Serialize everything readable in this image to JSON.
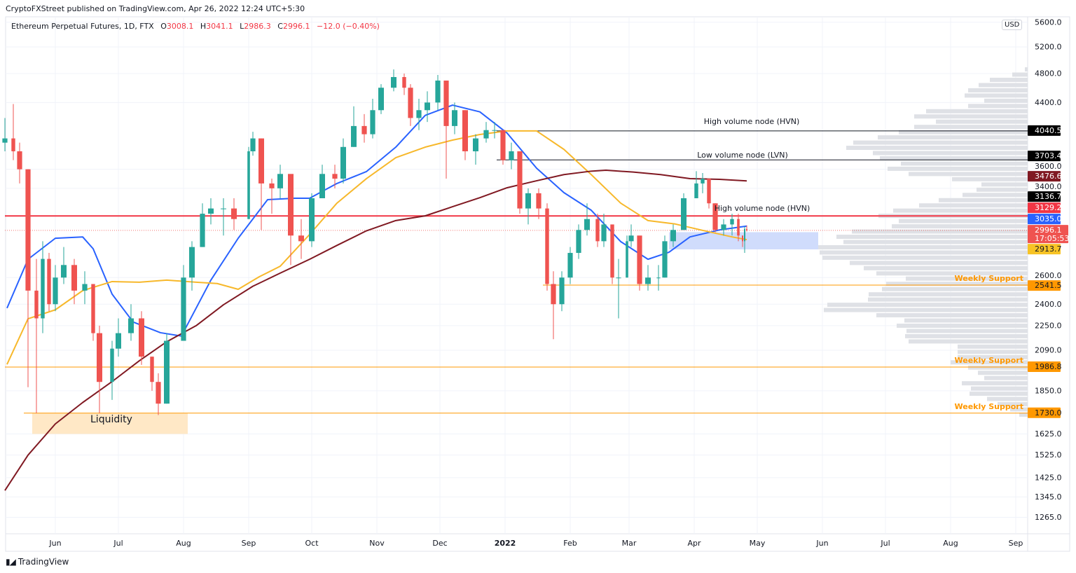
{
  "header": {
    "published": "CryptoFXStreet published on TradingView.com, Apr 26, 2022 12:24 UTC+5:30",
    "symbol": "Ethereum Perpetual Futures, 1D, FTX",
    "o_label": "O",
    "o": "3008.1",
    "h_label": "H",
    "h": "3041.1",
    "l_label": "L",
    "l": "2986.3",
    "c_label": "C",
    "c": "2996.1",
    "change": "−12.0 (−0.40%)",
    "currency": "USD"
  },
  "footer": {
    "logo_mark": "17",
    "brand": "TradingView"
  },
  "chart_data": {
    "type": "candlestick",
    "title": "Ethereum Perpetual Futures, 1D, FTX",
    "y_scale": "log",
    "ylim": [
      1200,
      5600
    ],
    "xlim": [
      "2021-05-08",
      "2022-09-08"
    ],
    "grid": true,
    "colors": {
      "up": "#26a69a",
      "down": "#ef5350",
      "ma_blue": "#2962ff",
      "ma_yellow": "#f7b82b",
      "ma_darkred": "#801922",
      "hvn_red": "#f23645",
      "support": "#ff9800",
      "node_line": "#131722",
      "zone_blue": "#d0dcfc",
      "liquidity_zone": "#ffe8c6",
      "volume_profile": "#dfe1e6"
    },
    "y_ticks": [
      "5600.0",
      "5200.0",
      "4800.0",
      "4400.0",
      "3600.0",
      "3400.0",
      "2600.0",
      "2400.0",
      "2250.0",
      "2090.0",
      "1850.0",
      "1625.0",
      "1525.0",
      "1425.0",
      "1345.0",
      "1265.0"
    ],
    "x_ticks": [
      {
        "date": "2021-06-01",
        "label": "Jun"
      },
      {
        "date": "2021-07-01",
        "label": "Jul"
      },
      {
        "date": "2021-08-01",
        "label": "Aug"
      },
      {
        "date": "2021-09-01",
        "label": "Sep"
      },
      {
        "date": "2021-10-01",
        "label": "Oct"
      },
      {
        "date": "2021-11-01",
        "label": "Nov"
      },
      {
        "date": "2021-12-01",
        "label": "Dec"
      },
      {
        "date": "2022-01-01",
        "label": "2022",
        "bold": true
      },
      {
        "date": "2022-02-01",
        "label": "Feb"
      },
      {
        "date": "2022-03-01",
        "label": "Mar"
      },
      {
        "date": "2022-04-01",
        "label": "Apr"
      },
      {
        "date": "2022-05-01",
        "label": "May"
      },
      {
        "date": "2022-06-01",
        "label": "Jun"
      },
      {
        "date": "2022-07-01",
        "label": "Jul"
      },
      {
        "date": "2022-08-01",
        "label": "Aug"
      },
      {
        "date": "2022-09-01",
        "label": "Sep"
      }
    ],
    "first_open": 3900,
    "candles_date_close_high_low": [
      [
        "2021-05-08",
        3950,
        4200,
        3800
      ],
      [
        "2021-05-12",
        3800,
        4380,
        3700
      ],
      [
        "2021-05-15",
        3600,
        3900,
        3450
      ],
      [
        "2021-05-19",
        2500,
        3600,
        1870
      ],
      [
        "2021-05-23",
        2300,
        2750,
        1730
      ],
      [
        "2021-05-26",
        2750,
        2900,
        2200
      ],
      [
        "2021-05-29",
        2400,
        2800,
        2350
      ],
      [
        "2021-06-01",
        2600,
        2700,
        2350
      ],
      [
        "2021-06-05",
        2700,
        2850,
        2550
      ],
      [
        "2021-06-10",
        2500,
        2750,
        2400
      ],
      [
        "2021-06-15",
        2550,
        2650,
        2400
      ],
      [
        "2021-06-19",
        2200,
        2500,
        2150
      ],
      [
        "2021-06-22",
        1900,
        2250,
        1730
      ],
      [
        "2021-06-28",
        2100,
        2150,
        1800
      ],
      [
        "2021-07-01",
        2200,
        2300,
        2050
      ],
      [
        "2021-07-07",
        2300,
        2400,
        2150
      ],
      [
        "2021-07-12",
        2050,
        2350,
        2000
      ],
      [
        "2021-07-17",
        1900,
        2050,
        1850
      ],
      [
        "2021-07-20",
        1780,
        1950,
        1720
      ],
      [
        "2021-07-24",
        2150,
        2200,
        1780
      ],
      [
        "2021-08-01",
        2600,
        2700,
        2150
      ],
      [
        "2021-08-05",
        2850,
        2900,
        2500
      ],
      [
        "2021-08-10",
        3150,
        3250,
        2850
      ],
      [
        "2021-08-14",
        3200,
        3300,
        3050
      ],
      [
        "2021-08-20",
        3200,
        3300,
        2950
      ],
      [
        "2021-08-25",
        3100,
        3300,
        3000
      ],
      [
        "2021-09-01",
        3800,
        3850,
        3100
      ],
      [
        "2021-09-03",
        3950,
        4030,
        3750
      ],
      [
        "2021-09-07",
        3450,
        3950,
        3000
      ],
      [
        "2021-09-12",
        3400,
        3500,
        3150
      ],
      [
        "2021-09-16",
        3550,
        3650,
        3300
      ],
      [
        "2021-09-21",
        2950,
        3500,
        2700
      ],
      [
        "2021-09-26",
        2900,
        3100,
        2750
      ],
      [
        "2021-10-01",
        3300,
        3350,
        2850
      ],
      [
        "2021-10-06",
        3550,
        3650,
        3300
      ],
      [
        "2021-10-12",
        3500,
        3650,
        3400
      ],
      [
        "2021-10-16",
        3850,
        3950,
        3450
      ],
      [
        "2021-10-21",
        4100,
        4350,
        3850
      ],
      [
        "2021-10-26",
        4000,
        4250,
        3900
      ],
      [
        "2021-10-30",
        4300,
        4450,
        3950
      ],
      [
        "2021-11-03",
        4600,
        4650,
        4250
      ],
      [
        "2021-11-09",
        4750,
        4860,
        4550
      ],
      [
        "2021-11-14",
        4600,
        4800,
        4500
      ],
      [
        "2021-11-17",
        4200,
        4650,
        4100
      ],
      [
        "2021-11-21",
        4300,
        4450,
        4050
      ],
      [
        "2021-11-25",
        4400,
        4550,
        4150
      ],
      [
        "2021-11-30",
        4700,
        4780,
        4300
      ],
      [
        "2021-12-04",
        4100,
        4700,
        3500
      ],
      [
        "2021-12-08",
        4300,
        4400,
        4000
      ],
      [
        "2021-12-13",
        3800,
        4300,
        3700
      ],
      [
        "2021-12-18",
        3950,
        4000,
        3650
      ],
      [
        "2021-12-23",
        4050,
        4150,
        3900
      ],
      [
        "2021-12-27",
        4050,
        4150,
        3950
      ],
      [
        "2021-12-31",
        3700,
        4050,
        3650
      ],
      [
        "2022-01-04",
        3800,
        3900,
        3600
      ],
      [
        "2022-01-08",
        3200,
        3800,
        3150
      ],
      [
        "2022-01-12",
        3350,
        3400,
        3050
      ],
      [
        "2022-01-17",
        3200,
        3400,
        3100
      ],
      [
        "2022-01-21",
        2550,
        3250,
        2500
      ],
      [
        "2022-01-24",
        2400,
        2650,
        2160
      ],
      [
        "2022-01-28",
        2600,
        2650,
        2350
      ],
      [
        "2022-02-01",
        2800,
        2850,
        2550
      ],
      [
        "2022-02-05",
        3000,
        3050,
        2750
      ],
      [
        "2022-02-09",
        3100,
        3250,
        2950
      ],
      [
        "2022-02-14",
        2900,
        3150,
        2850
      ],
      [
        "2022-02-17",
        3050,
        3150,
        2850
      ],
      [
        "2022-02-21",
        2600,
        3000,
        2550
      ],
      [
        "2022-02-24",
        2600,
        2750,
        2300
      ],
      [
        "2022-02-28",
        2900,
        2950,
        2600
      ],
      [
        "2022-03-02",
        2950,
        3050,
        2850
      ],
      [
        "2022-03-06",
        2550,
        2900,
        2500
      ],
      [
        "2022-03-10",
        2600,
        2700,
        2500
      ],
      [
        "2022-03-15",
        2600,
        2700,
        2500
      ],
      [
        "2022-03-18",
        2900,
        2950,
        2600
      ],
      [
        "2022-03-22",
        3000,
        3050,
        2850
      ],
      [
        "2022-03-27",
        3300,
        3350,
        3000
      ],
      [
        "2022-04-02",
        3450,
        3580,
        3300
      ],
      [
        "2022-04-05",
        3500,
        3560,
        3350
      ],
      [
        "2022-04-08",
        3250,
        3500,
        3200
      ],
      [
        "2022-04-11",
        3000,
        3250,
        2980
      ],
      [
        "2022-04-15",
        3050,
        3100,
        2950
      ],
      [
        "2022-04-19",
        3100,
        3150,
        2950
      ],
      [
        "2022-04-22",
        2950,
        3150,
        2900
      ],
      [
        "2022-04-24",
        2900,
        2950,
        2850
      ],
      [
        "2022-04-25",
        3008.1,
        3030,
        2800
      ],
      [
        "2022-04-26",
        2996.1,
        3041.1,
        2986.3
      ]
    ],
    "moving_averages": [
      {
        "color": "#2962ff",
        "points": [
          [
            "2021-05-09",
            2372
          ],
          [
            "2021-05-19",
            2747
          ],
          [
            "2021-06-01",
            2926
          ],
          [
            "2021-06-14",
            2938
          ],
          [
            "2021-06-19",
            2835
          ],
          [
            "2021-06-28",
            2474
          ],
          [
            "2021-07-08",
            2275
          ],
          [
            "2021-07-21",
            2203
          ],
          [
            "2021-07-31",
            2181
          ],
          [
            "2021-08-14",
            2580
          ],
          [
            "2021-08-27",
            2926
          ],
          [
            "2021-09-10",
            3286
          ],
          [
            "2021-09-23",
            3300
          ],
          [
            "2021-09-30",
            3300
          ],
          [
            "2021-10-13",
            3450
          ],
          [
            "2021-10-27",
            3575
          ],
          [
            "2021-11-10",
            3848
          ],
          [
            "2021-11-24",
            4233
          ],
          [
            "2021-12-07",
            4366
          ],
          [
            "2021-12-20",
            4278
          ],
          [
            "2022-01-02",
            4013
          ],
          [
            "2022-01-16",
            3612
          ],
          [
            "2022-01-29",
            3356
          ],
          [
            "2022-02-11",
            3183
          ],
          [
            "2022-02-25",
            2897
          ],
          [
            "2022-03-10",
            2747
          ],
          [
            "2022-03-20",
            2806
          ],
          [
            "2022-03-30",
            2938
          ],
          [
            "2022-04-13",
            3000
          ],
          [
            "2022-04-26",
            3035
          ]
        ]
      },
      {
        "color": "#f7b82b",
        "points": [
          [
            "2021-05-09",
            2003
          ],
          [
            "2021-05-19",
            2297
          ],
          [
            "2021-06-01",
            2360
          ],
          [
            "2021-06-14",
            2500
          ],
          [
            "2021-06-28",
            2569
          ],
          [
            "2021-07-11",
            2564
          ],
          [
            "2021-07-24",
            2580
          ],
          [
            "2021-08-07",
            2564
          ],
          [
            "2021-08-17",
            2554
          ],
          [
            "2021-08-27",
            2510
          ],
          [
            "2021-09-06",
            2606
          ],
          [
            "2021-09-16",
            2690
          ],
          [
            "2021-09-30",
            2960
          ],
          [
            "2021-10-13",
            3252
          ],
          [
            "2021-10-27",
            3500
          ],
          [
            "2021-11-10",
            3728
          ],
          [
            "2021-11-24",
            3848
          ],
          [
            "2021-12-07",
            3930
          ],
          [
            "2021-12-20",
            3997
          ],
          [
            "2022-01-02",
            4040
          ],
          [
            "2022-01-16",
            4040
          ],
          [
            "2022-01-29",
            3822
          ],
          [
            "2022-02-11",
            3543
          ],
          [
            "2022-02-25",
            3252
          ],
          [
            "2022-03-10",
            3086
          ],
          [
            "2022-03-23",
            3054
          ],
          [
            "2022-04-06",
            2992
          ],
          [
            "2022-04-19",
            2938
          ],
          [
            "2022-04-26",
            2913.7
          ]
        ]
      },
      {
        "color": "#801922",
        "points": [
          [
            "2021-05-08",
            1371
          ],
          [
            "2021-05-19",
            1525
          ],
          [
            "2021-06-01",
            1675
          ],
          [
            "2021-06-14",
            1786
          ],
          [
            "2021-06-28",
            1902
          ],
          [
            "2021-07-11",
            2025
          ],
          [
            "2021-07-24",
            2144
          ],
          [
            "2021-08-07",
            2250
          ],
          [
            "2021-08-20",
            2396
          ],
          [
            "2021-09-03",
            2533
          ],
          [
            "2021-09-16",
            2635
          ],
          [
            "2021-09-30",
            2747
          ],
          [
            "2021-10-13",
            2864
          ],
          [
            "2021-10-27",
            2992
          ],
          [
            "2021-11-10",
            3086
          ],
          [
            "2021-11-24",
            3130
          ],
          [
            "2021-12-07",
            3217
          ],
          [
            "2021-12-20",
            3306
          ],
          [
            "2022-01-02",
            3406
          ],
          [
            "2022-01-16",
            3478
          ],
          [
            "2022-01-29",
            3543
          ],
          [
            "2022-02-11",
            3580
          ],
          [
            "2022-02-18",
            3590
          ],
          [
            "2022-03-03",
            3570
          ],
          [
            "2022-03-16",
            3543
          ],
          [
            "2022-03-30",
            3500
          ],
          [
            "2022-04-13",
            3493
          ],
          [
            "2022-04-26",
            3476.6
          ]
        ]
      }
    ],
    "levels": [
      {
        "price": 4040.5,
        "label": "4040.5",
        "from": "2021-12-28",
        "color": "#131722",
        "label_bg": "#000000",
        "label_fg": "#ffffff",
        "line": true,
        "note": "High volume node (HVN)"
      },
      {
        "price": 3703.4,
        "label": "3703.4",
        "from": "2021-12-28",
        "color": "#131722",
        "label_bg": "#000000",
        "label_fg": "#ffffff",
        "line": true,
        "note": "Low volume node (LVN)"
      },
      {
        "price": 3476.6,
        "label": "3476.6",
        "label_bg": "#801922",
        "label_fg": "#ffffff",
        "line": false
      },
      {
        "price": 3136.7,
        "label": "3136.7",
        "label_bg": "#000000",
        "label_fg": "#ffffff",
        "line": false
      },
      {
        "price": 3129.2,
        "label": "3129.2",
        "from": "2021-05-08",
        "color": "#f23645",
        "label_bg": "#f23645",
        "label_fg": "#ffffff",
        "line": true,
        "width": 2,
        "note": "High volume node (HVN)"
      },
      {
        "price": 3035.0,
        "label": "3035.0",
        "label_bg": "#2962ff",
        "label_fg": "#ffffff",
        "line": false
      },
      {
        "price": 2996.1,
        "label": "2996.1",
        "sub": "17:05:53",
        "from": "2021-05-08",
        "color": "#ef5350",
        "label_bg": "#ef5350",
        "label_fg": "#ffffff",
        "line": true,
        "dotted": true
      },
      {
        "price": 2913.7,
        "label": "2913.7",
        "label_bg": "#f7c325",
        "label_fg": "#131722",
        "line": false
      },
      {
        "price": 2541.5,
        "label": "2541.5",
        "from": "2022-01-19",
        "color": "#ff9800",
        "label_bg": "#ff9800",
        "label_fg": "#131722",
        "line": true,
        "note": "Weekly Support"
      },
      {
        "price": 1986.8,
        "label": "1986.8",
        "from": "2021-05-08",
        "color": "#ff9800",
        "label_bg": "#ff9800",
        "label_fg": "#131722",
        "line": true,
        "note": "Weekly Support"
      },
      {
        "price": 1730.0,
        "label": "1730.0",
        "from": "2021-05-17",
        "color": "#ff9800",
        "label_bg": "#ff9800",
        "label_fg": "#131722",
        "line": true,
        "note": "Weekly Support"
      }
    ],
    "zones": [
      {
        "name": "Liquidity",
        "label": "Liquidity",
        "from": "2021-05-21",
        "to": "2021-08-03",
        "low": 1625,
        "high": 1730,
        "color": "#ffe8c6"
      },
      {
        "name": "blue-zone",
        "label": "",
        "from": "2022-03-20",
        "to": "2022-05-30",
        "low": 2830,
        "high": 2980,
        "color": "#d0dcfc"
      }
    ],
    "volume_profile": {
      "price_range": [
        1722,
        4861
      ],
      "volumes_top_to_bottom": [
        4,
        22,
        54,
        70,
        85,
        90,
        62,
        85,
        145,
        162,
        131,
        162,
        184,
        214,
        249,
        259,
        221,
        211,
        181,
        200,
        170,
        108,
        66,
        73,
        93,
        127,
        155,
        192,
        213,
        184,
        194,
        251,
        273,
        263,
        315,
        297,
        293,
        254,
        234,
        216,
        174,
        202,
        208,
        227,
        228,
        286,
        291,
        216,
        176,
        187,
        173,
        175,
        170,
        100,
        100,
        100,
        110,
        85,
        71,
        62,
        94,
        81,
        83,
        58,
        43,
        25,
        12
      ]
    }
  }
}
